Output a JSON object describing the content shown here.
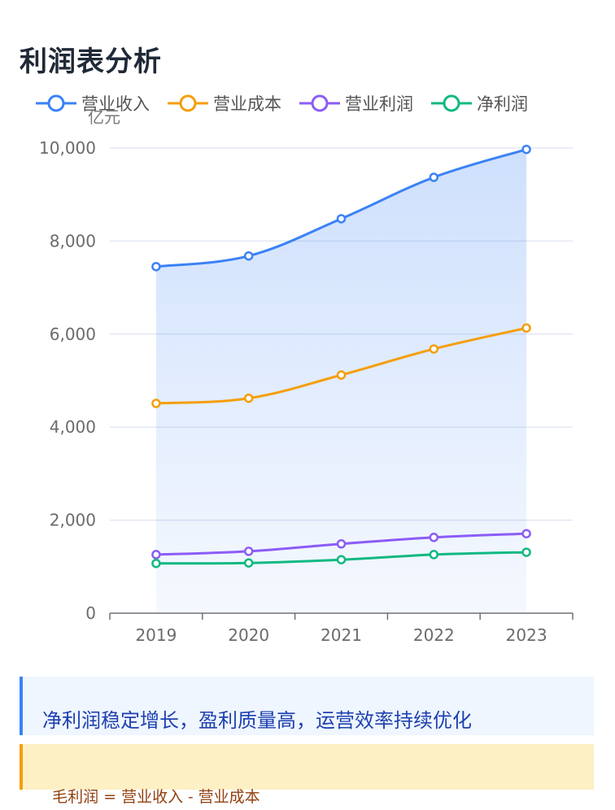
{
  "page": {
    "title": "利润表分析"
  },
  "chart_data": {
    "type": "line",
    "title": "利润表分析",
    "xlabel": "",
    "ylabel": "亿元",
    "ylim": [
      0,
      10000
    ],
    "yticks": [
      "0",
      "2,000",
      "4,000",
      "6,000",
      "8,000",
      "10,000"
    ],
    "categories": [
      "2019",
      "2020",
      "2021",
      "2022",
      "2023"
    ],
    "grid": true,
    "legend_position": "top",
    "series": [
      {
        "name": "营业收入",
        "color": "#3b82f6",
        "area": true,
        "values": [
          7450,
          7680,
          8480,
          9370,
          9970
        ]
      },
      {
        "name": "营业成本",
        "color": "#f59e0b",
        "area": false,
        "values": [
          4510,
          4620,
          5120,
          5680,
          6130
        ]
      },
      {
        "name": "营业利润",
        "color": "#8b5cf6",
        "area": false,
        "values": [
          1260,
          1330,
          1490,
          1630,
          1710
        ]
      },
      {
        "name": "净利润",
        "color": "#10b981",
        "area": false,
        "values": [
          1070,
          1080,
          1150,
          1260,
          1310
        ]
      }
    ]
  },
  "notes": {
    "insight": "净利润稳定增长，盈利质量高，运营效率持续优化",
    "formula": "毛利润 = 营业收入 - 营业成本"
  }
}
